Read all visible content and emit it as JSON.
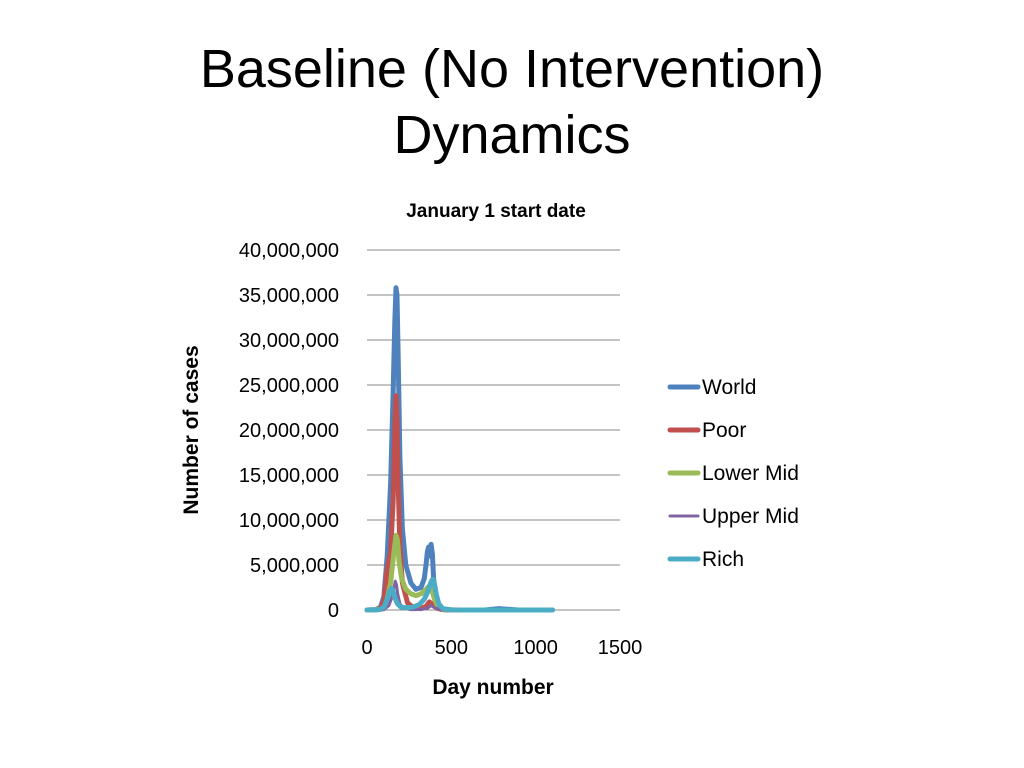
{
  "slide": {
    "title_line1": "Baseline (No Intervention)",
    "title_line2": "Dynamics"
  },
  "chart_data": {
    "type": "line",
    "title": "January 1 start date",
    "xlabel": "Day number",
    "ylabel": "Number of cases",
    "xlim": [
      0,
      1500
    ],
    "ylim": [
      0,
      40000000
    ],
    "x_ticks": [
      0,
      500,
      1000,
      1500
    ],
    "x_tick_labels": [
      "0",
      "500",
      "1000",
      "1500"
    ],
    "y_ticks": [
      0,
      5000000,
      10000000,
      15000000,
      20000000,
      25000000,
      30000000,
      35000000,
      40000000
    ],
    "y_tick_labels": [
      "0",
      "5,000,000",
      "10,000,000",
      "15,000,000",
      "20,000,000",
      "25,000,000",
      "30,000,000",
      "35,000,000",
      "40,000,000"
    ],
    "grid": "horizontal",
    "legend_position": "right",
    "series": [
      {
        "name": "World",
        "color": "#4F81BD",
        "width": 5,
        "x": [
          0,
          50,
          80,
          100,
          120,
          140,
          155,
          165,
          172,
          178,
          185,
          195,
          210,
          230,
          260,
          290,
          320,
          340,
          350,
          358,
          365,
          372,
          380,
          388,
          395,
          405,
          420,
          440,
          480,
          550,
          700,
          780,
          820,
          900,
          1000,
          1100
        ],
        "y": [
          0,
          30000,
          300000,
          1500000,
          6000000,
          14000000,
          24000000,
          32000000,
          35800000,
          35000000,
          28000000,
          17000000,
          9000000,
          5000000,
          3000000,
          2300000,
          2500000,
          3500000,
          5000000,
          6500000,
          7000000,
          6000000,
          7300000,
          6200000,
          3500000,
          1200000,
          300000,
          60000,
          10000,
          0,
          0,
          150000,
          100000,
          0,
          0,
          0
        ]
      },
      {
        "name": "Poor",
        "color": "#C0504D",
        "width": 5,
        "x": [
          0,
          50,
          80,
          100,
          120,
          140,
          155,
          165,
          172,
          178,
          185,
          195,
          210,
          240,
          280,
          320,
          350,
          370,
          390,
          420,
          460,
          550,
          1100
        ],
        "y": [
          0,
          20000,
          200000,
          1000000,
          4500000,
          6500000,
          12000000,
          20000000,
          23800000,
          21000000,
          14000000,
          7000000,
          3000000,
          800000,
          200000,
          150000,
          400000,
          900000,
          600000,
          150000,
          20000,
          0,
          0
        ]
      },
      {
        "name": "Lower Mid",
        "color": "#9BBB59",
        "width": 5,
        "x": [
          0,
          80,
          110,
          140,
          160,
          172,
          180,
          190,
          205,
          230,
          260,
          290,
          320,
          345,
          360,
          372,
          385,
          400,
          420,
          450,
          500,
          600,
          1100
        ],
        "y": [
          0,
          50000,
          400000,
          3000000,
          6500000,
          8300000,
          7800000,
          5500000,
          3500000,
          2300000,
          1800000,
          1600000,
          1800000,
          2200000,
          2500000,
          2700000,
          2200000,
          1200000,
          400000,
          80000,
          10000,
          0,
          0
        ]
      },
      {
        "name": "Upper Mid",
        "color": "#8064A2",
        "width": 3,
        "x": [
          0,
          100,
          130,
          150,
          160,
          168,
          175,
          182,
          195,
          215,
          260,
          320,
          360,
          380,
          400,
          440,
          500,
          1100
        ],
        "y": [
          0,
          30000,
          500000,
          1500000,
          2500000,
          3200000,
          2800000,
          1800000,
          700000,
          200000,
          40000,
          50000,
          200000,
          500000,
          250000,
          50000,
          0,
          0
        ]
      },
      {
        "name": "Rich",
        "color": "#4BACC6",
        "width": 5,
        "x": [
          0,
          70,
          100,
          120,
          135,
          145,
          155,
          165,
          180,
          200,
          230,
          270,
          310,
          340,
          360,
          375,
          385,
          392,
          400,
          410,
          425,
          450,
          500,
          600,
          1100
        ],
        "y": [
          0,
          30000,
          300000,
          1200000,
          2100000,
          2400000,
          2100000,
          1400000,
          700000,
          350000,
          250000,
          300000,
          600000,
          1200000,
          2000000,
          2900000,
          3300000,
          3400000,
          2900000,
          1800000,
          700000,
          150000,
          10000,
          0,
          0
        ]
      }
    ]
  }
}
